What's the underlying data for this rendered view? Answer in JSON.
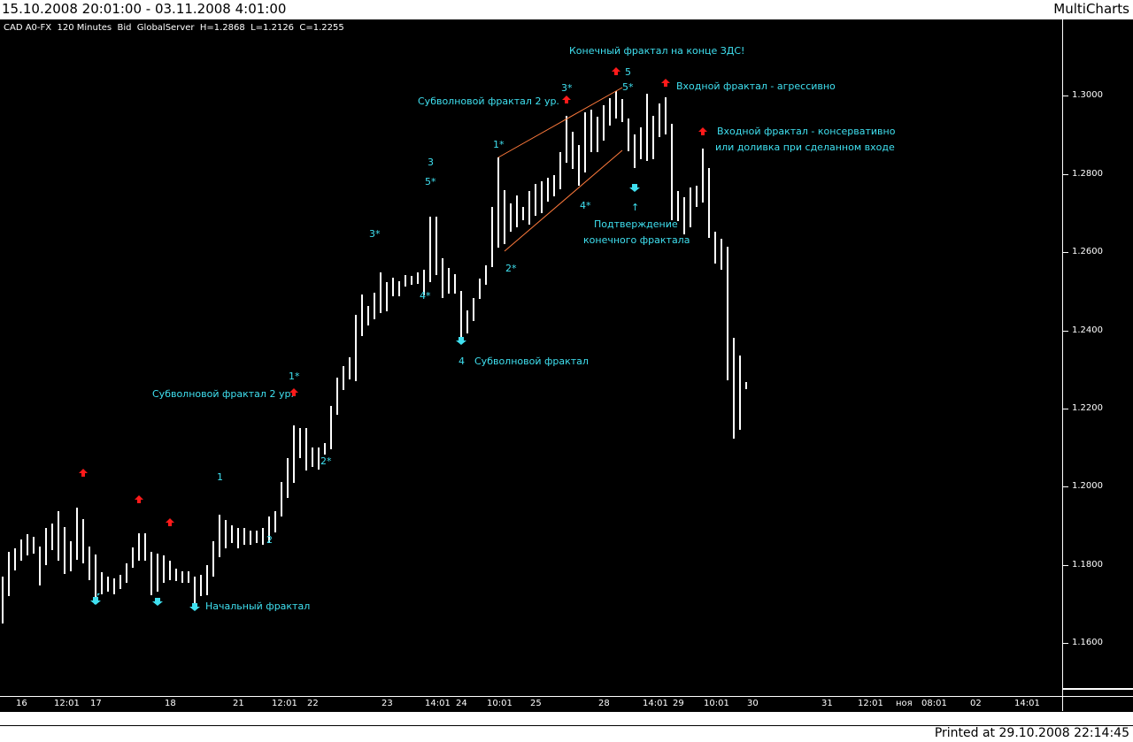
{
  "header": {
    "date_range": "15.10.2008 20:01:00 - 03.11.2008 4:01:00",
    "brand": "MultiCharts"
  },
  "info_line": "CAD A0-FX  120 Minutes  Bid  GlobalServer  H=1.2868  L=1.2126  C=1.2255",
  "price_ticks": [
    "1.3000",
    "1.2800",
    "1.2600",
    "1.2400",
    "1.2200",
    "1.2000",
    "1.1800",
    "1.1600"
  ],
  "time_ticks": [
    "16",
    "12:01",
    "17",
    "18",
    "21",
    "12:01",
    "22",
    "23",
    "14:01",
    "24",
    "10:01",
    "25",
    "28",
    "14:01",
    "29",
    "10:01",
    "30",
    "31",
    "12:01",
    "ноя",
    "08:01",
    "02",
    "14:01"
  ],
  "annotations": {
    "final_fractal": "Конечный фрактал на конце ЗДС!",
    "entry_aggressive": "Входной фрактал - агрессивно",
    "entry_conservative_1": "Входной фрактал - консервативно",
    "entry_conservative_2": "или доливка при сделанном входе",
    "subwave_2_top": "Субволновой фрактал 2 ур.",
    "subwave_2_bottom": "Субволновой фрактал 2 ур.",
    "confirm_1": "Подтверждение",
    "confirm_2": "конечного фрактала",
    "confirm_arrow": "↑",
    "subwave": "Субволновой фрактал",
    "initial": "Начальный фрактал"
  },
  "wave_labels": {
    "w5": "5",
    "w5s_top": "5*",
    "w3s_top": "3*",
    "w1s_top": "1*",
    "w4s_top": "4*",
    "w2s_top": "2*",
    "w3": "3",
    "w5s": "5*",
    "w3s": "3*",
    "w4s": "4*",
    "w4": "4",
    "w1s": "1*",
    "w2s": "2*",
    "w1": "1",
    "w2": "2"
  },
  "colors": {
    "background": "#000000",
    "bars": "#ffffff",
    "annotation": "#3fe0f0",
    "up_fractal_arrow": "#ff1a1a",
    "down_fractal_arrow": "#3fe0f0",
    "channel_lines": "#ff7a3c"
  },
  "footer": {
    "printed": "Printed at 29.10.2008 22:14:45"
  }
}
